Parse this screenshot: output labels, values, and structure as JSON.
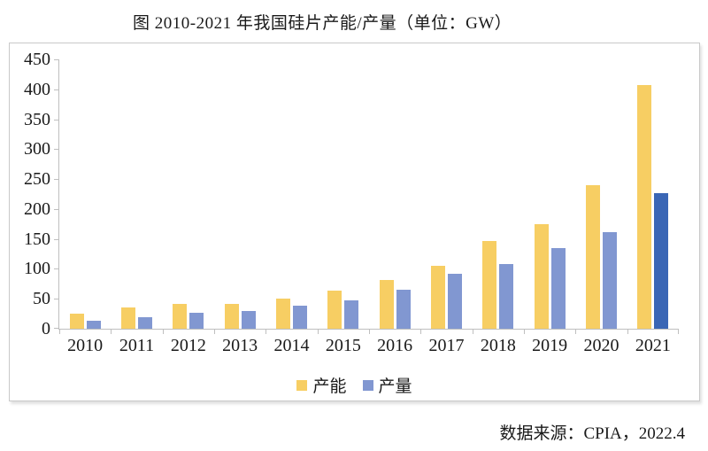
{
  "page": {
    "title": "图 2010-2021 年我国硅片产能/产量（单位：GW）",
    "source": "数据来源：CPIA，2022.4"
  },
  "legend": {
    "capacity": "产能",
    "production": "产量"
  },
  "colors": {
    "capacity_bar": "#F7CE63",
    "production_bar": "#8197D1",
    "production_highlight_bar": "#3A66B5",
    "axis_line": "#BFBFBF",
    "frame_border": "#C9C9C9",
    "text": "#1A1A1A",
    "background": "#FFFFFF"
  },
  "axes": {
    "y_tick_labels": [
      "0",
      "50",
      "100",
      "150",
      "200",
      "250",
      "300",
      "350",
      "400",
      "450"
    ],
    "x_tick_labels": [
      "2010",
      "2011",
      "2012",
      "2013",
      "2014",
      "2015",
      "2016",
      "2017",
      "2018",
      "2019",
      "2020",
      "2021"
    ]
  },
  "chart_data": {
    "type": "bar",
    "title": "图 2010-2021 年我国硅片产能/产量（单位：GW）",
    "unit": "GW",
    "categories": [
      "2010",
      "2011",
      "2012",
      "2013",
      "2014",
      "2015",
      "2016",
      "2017",
      "2018",
      "2019",
      "2020",
      "2021"
    ],
    "series": [
      {
        "name": "产能",
        "values": [
          25,
          36,
          41,
          42,
          50,
          64,
          81,
          105,
          146,
          174,
          240,
          407
        ],
        "color": "#F7CE63"
      },
      {
        "name": "产量",
        "values": [
          13,
          20,
          26,
          30,
          39,
          48,
          65,
          92,
          108,
          135,
          161,
          227
        ],
        "color": "#8197D1",
        "highlight_category": "2021",
        "highlight_color": "#3A66B5"
      }
    ],
    "xlabel": "",
    "ylabel": "",
    "ylim": [
      0,
      450
    ],
    "ytick_step": 50,
    "grid": false,
    "legend_position": "bottom",
    "source": "数据来源：CPIA，2022.4"
  }
}
